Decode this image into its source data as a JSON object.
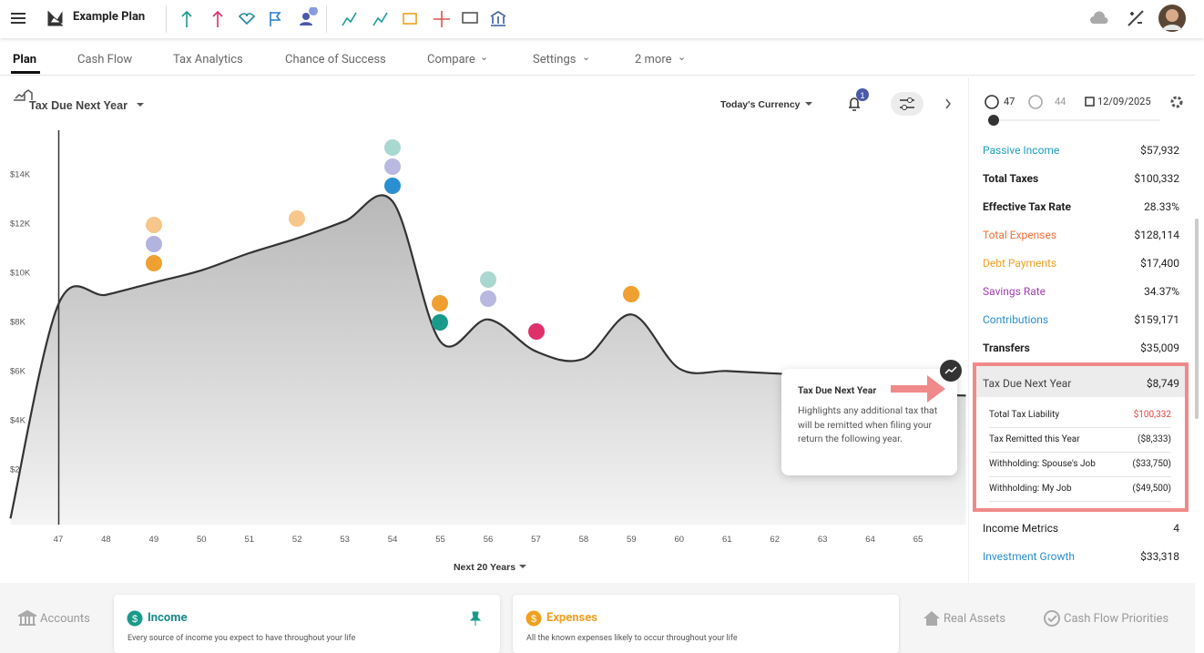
{
  "header": {
    "title": "Example Plan"
  },
  "tabs": [
    "Plan",
    "Cash Flow",
    "Tax Analytics",
    "Chance of Success",
    "Compare",
    "Settings",
    "2 more"
  ],
  "toolbar": {
    "chart_selector": "Tax Due Next Year",
    "currency": "Today's Currency",
    "notification_count": "1"
  },
  "chart_data": {
    "type": "area",
    "x_label": "Next 20 Years",
    "color": "#333333",
    "x": [
      46,
      47,
      48,
      49,
      50,
      51,
      52,
      53,
      54,
      55,
      56,
      57,
      58,
      59,
      60,
      61,
      62,
      63,
      64,
      65,
      66
    ],
    "values": [
      0,
      8700,
      9100,
      9600,
      10100,
      10800,
      11400,
      12100,
      12900,
      7200,
      8100,
      6800,
      6500,
      8300,
      6100,
      6000,
      5900,
      5800,
      5500,
      5100,
      5000
    ],
    "xlim": [
      46,
      66
    ],
    "ylim": [
      -250,
      15800
    ],
    "xticks": [
      47,
      48,
      49,
      50,
      51,
      52,
      53,
      54,
      55,
      56,
      57,
      58,
      59,
      60,
      61,
      62,
      63,
      64,
      65
    ],
    "yticks": [
      {
        "value": 2000,
        "label": "$2K"
      },
      {
        "value": 4000,
        "label": "$4K"
      },
      {
        "value": 6000,
        "label": "$6K"
      },
      {
        "value": 8000,
        "label": "$8K"
      },
      {
        "value": 10000,
        "label": "$10K"
      },
      {
        "value": 12000,
        "label": "$12K"
      },
      {
        "value": 14000,
        "label": "$14K"
      }
    ]
  },
  "tooltip": {
    "title": "Tax Due Next Year",
    "text": "Highlights any additional tax that will be remitted when filing your return the following year."
  },
  "side_panel": {
    "age_primary": "47",
    "age_spouse": "44",
    "date": "12/09/2025",
    "metrics": [
      {
        "label": "Passive Income",
        "value": "$57,932",
        "color": "#1e9fc0"
      },
      {
        "label": "Total Taxes",
        "value": "$100,332",
        "color": "#222222"
      },
      {
        "label": "Effective Tax Rate",
        "value": "28.33%",
        "color": "#222222"
      },
      {
        "label": "Total Expenses",
        "value": "$128,114",
        "color": "#f0703c"
      },
      {
        "label": "Debt Payments",
        "value": "$17,400",
        "color": "#f0a020"
      },
      {
        "label": "Savings Rate",
        "value": "34.37%",
        "color": "#a33fb3"
      },
      {
        "label": "Contributions",
        "value": "$159,171",
        "color": "#2a8fd0"
      },
      {
        "label": "Transfers",
        "value": "$35,009",
        "color": "#222222"
      }
    ],
    "selected": {
      "label": "Tax Due Next Year",
      "value": "$8,749",
      "details": [
        {
          "label": "Total Tax Liability",
          "value": "$100,332"
        },
        {
          "label": "Tax Remitted this Year",
          "value": "($8,333)"
        },
        {
          "label": "Withholding: Spouse's Job",
          "value": "($33,750)"
        },
        {
          "label": "Withholding: My Job",
          "value": "($49,500)"
        }
      ]
    },
    "more_metrics": [
      {
        "label": "Income Metrics",
        "value": "4",
        "color": "#222222"
      },
      {
        "label": "Investment Growth",
        "value": "$33,318",
        "color": "#2a8fd0"
      }
    ]
  },
  "footer": {
    "accounts": "Accounts",
    "income": {
      "title": "Income",
      "text": "Every source of income you expect to have throughout your life"
    },
    "expenses": {
      "title": "Expenses",
      "text": "All the known expenses likely to occur throughout your life"
    },
    "real_assets": "Real Assets",
    "priorities": "Cash Flow Priorities"
  }
}
